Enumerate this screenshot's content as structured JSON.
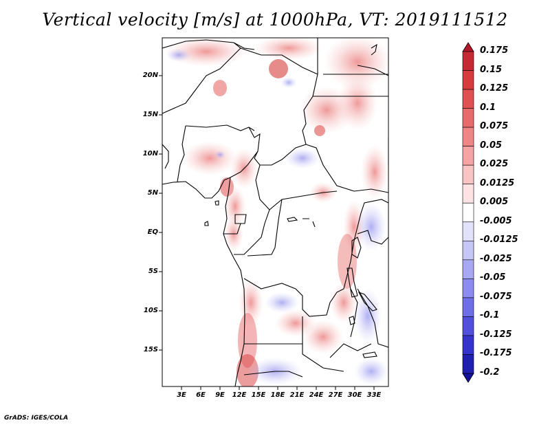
{
  "title": "Vertical velocity [m/s] at 1000hPa, VT: 2019111512",
  "footer": "GrADS: IGES/COLA",
  "map": {
    "lat_labels": [
      "20N",
      "15N",
      "10N",
      "5N",
      "EQ",
      "5S",
      "10S",
      "15S"
    ],
    "lon_labels": [
      "3E",
      "6E",
      "9E",
      "12E",
      "15E",
      "18E",
      "21E",
      "24E",
      "27E",
      "30E",
      "33E"
    ],
    "variable": "vertical velocity",
    "units": "m/s",
    "level": "1000hPa",
    "valid_time": "2019111512"
  },
  "colorbar": {
    "labels": [
      "0.175",
      "0.15",
      "0.125",
      "0.1",
      "0.075",
      "0.05",
      "0.025",
      "0.0125",
      "0.005",
      "-0.005",
      "-0.0125",
      "-0.025",
      "-0.05",
      "-0.075",
      "-0.1",
      "-0.125",
      "-0.175",
      "-0.2"
    ],
    "colors": [
      "#b2182b",
      "#c52a33",
      "#d73c3c",
      "#e05252",
      "#e86b6b",
      "#ef8686",
      "#f5a3a3",
      "#f9c4c4",
      "#fde3e3",
      "#ffffff",
      "#e2e2fb",
      "#c6c6f7",
      "#a8a8f2",
      "#8c8cee",
      "#6e6ee6",
      "#5050dd",
      "#3434cc",
      "#2020b0",
      "#12129a"
    ]
  },
  "colors": {
    "upward": "#d73c3c",
    "downward": "#5050dd",
    "border": "#000000"
  }
}
